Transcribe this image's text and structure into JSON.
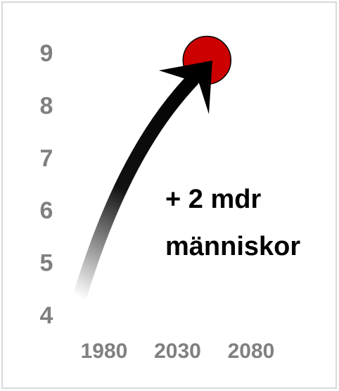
{
  "chart_data": {
    "type": "scatter",
    "x": [
      2050
    ],
    "values": [
      8.9
    ],
    "color": "#cc0000",
    "xlim": [
      1980,
      2080
    ],
    "xticks": [
      1980,
      2030,
      2080
    ],
    "ylim": [
      4,
      9
    ],
    "yticks": [
      4,
      5,
      6,
      7,
      8,
      9
    ],
    "annotation": [
      "+ 2 mdr",
      "människor"
    ]
  }
}
